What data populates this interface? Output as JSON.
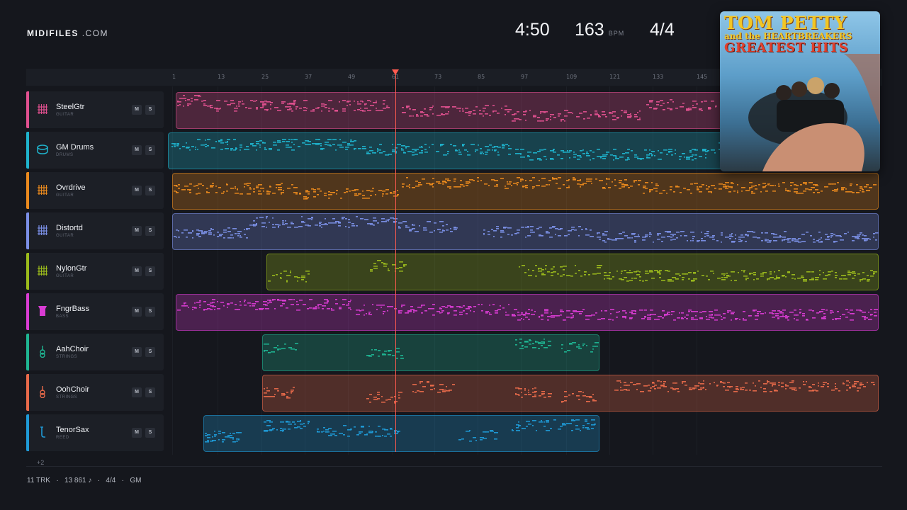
{
  "brand": {
    "name": "MIDIFILES",
    "domain": ".COM"
  },
  "transport": {
    "time": "4:50",
    "bpm": "163",
    "bpm_unit": "BPM",
    "signature": "4/4"
  },
  "ruler": {
    "ticks": [
      "1",
      "13",
      "25",
      "37",
      "49",
      "61",
      "73",
      "85",
      "97",
      "109",
      "121",
      "133",
      "145"
    ]
  },
  "tracks": [
    {
      "name": "SteelGtr",
      "type": "GUITAR",
      "color": "#e0508f",
      "icon": "guitar-grid-icon",
      "mute": "M",
      "solo": "S"
    },
    {
      "name": "GM Drums",
      "type": "DRUMS",
      "color": "#1fb3cc",
      "icon": "drum-icon",
      "mute": "M",
      "solo": "S"
    },
    {
      "name": "Ovrdrive",
      "type": "GUITAR",
      "color": "#ea8a1e",
      "icon": "guitar-grid-icon",
      "mute": "M",
      "solo": "S"
    },
    {
      "name": "Distortd",
      "type": "GUITAR",
      "color": "#7b8fe6",
      "icon": "guitar-grid-icon",
      "mute": "M",
      "solo": "S"
    },
    {
      "name": "NylonGtr",
      "type": "GUITAR",
      "color": "#9bbb1c",
      "icon": "guitar-grid-icon",
      "mute": "M",
      "solo": "S"
    },
    {
      "name": "FngrBass",
      "type": "BASS",
      "color": "#d93cd3",
      "icon": "bass-icon",
      "mute": "M",
      "solo": "S"
    },
    {
      "name": "AahChoir",
      "type": "STRINGS",
      "color": "#1fb592",
      "icon": "violin-icon",
      "mute": "M",
      "solo": "S"
    },
    {
      "name": "OohChoir",
      "type": "STRINGS",
      "color": "#e86a4a",
      "icon": "violin-icon",
      "mute": "M",
      "solo": "S"
    },
    {
      "name": "TenorSax",
      "type": "REED",
      "color": "#1f9ad6",
      "icon": "sax-icon",
      "mute": "M",
      "solo": "S"
    }
  ],
  "more_tracks": "+2",
  "footer": {
    "tracks": "11 TRK",
    "notes": "13 861 ♪",
    "signature": "4/4",
    "standard": "GM",
    "sep": "·"
  },
  "album": {
    "line1": "TOM PETTY",
    "line2": "and the HEARTBREAKERS",
    "line3": "GREATEST HITS"
  }
}
